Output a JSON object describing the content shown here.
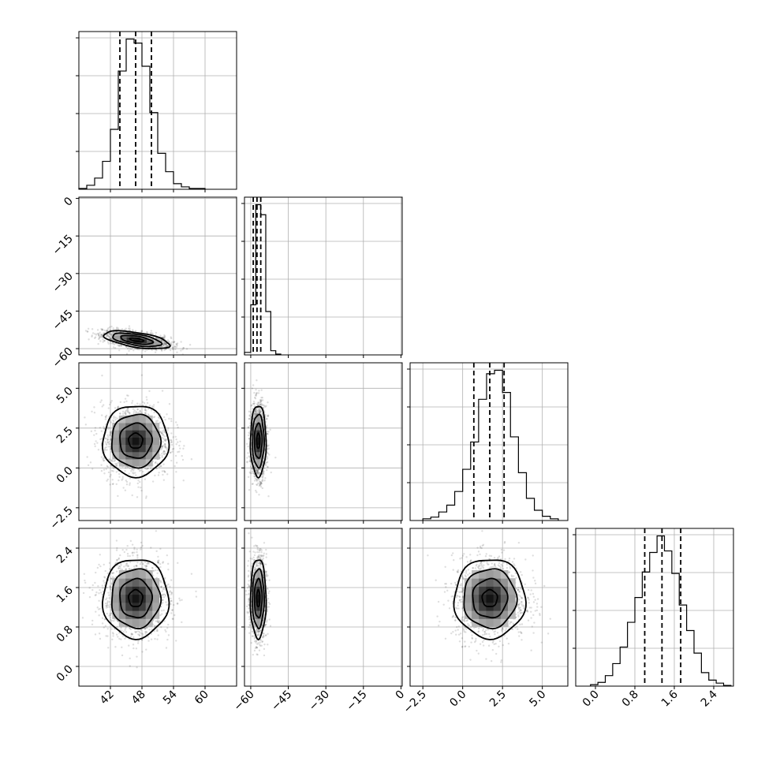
{
  "chart_data": {
    "type": "corner",
    "parameters": [
      {
        "range": [
          36,
          66
        ],
        "ticks": [
          42,
          48,
          54,
          60
        ],
        "tick_labels": [
          "42",
          "48",
          "54",
          "60"
        ]
      },
      {
        "range": [
          -62.5,
          0.5
        ],
        "ticks": [
          -60,
          -45,
          -30,
          -15,
          0
        ],
        "tick_labels": [
          "−60",
          "−45",
          "−30",
          "−15",
          "0"
        ]
      },
      {
        "range": [
          -3.3,
          6.6
        ],
        "ticks": [
          -2.5,
          0.0,
          2.5,
          5.0
        ],
        "tick_labels": [
          "−2.5",
          "0.0",
          "2.5",
          "5.0"
        ]
      },
      {
        "range": [
          -0.4,
          2.8
        ],
        "ticks": [
          0.0,
          0.8,
          1.6,
          2.4
        ],
        "tick_labels": [
          "0.0",
          "0.8",
          "1.6",
          "2.4"
        ]
      }
    ],
    "histograms": [
      {
        "quantiles": [
          43.8,
          46.8,
          49.8
        ],
        "bins": [
          36.0,
          37.5,
          39.0,
          40.5,
          42.0,
          43.5,
          45.0,
          46.5,
          48.0,
          49.5,
          51.0,
          52.5,
          54.0,
          55.5,
          57.0,
          58.5,
          60.0
        ],
        "counts": [
          1,
          5,
          14,
          35,
          75,
          148,
          188,
          183,
          154,
          96,
          45,
          22,
          7,
          3,
          1,
          1
        ]
      },
      {
        "quantiles": [
          -59.0,
          -57.5,
          -56.0
        ],
        "bins": [
          -62.5,
          -60.0,
          -58.0,
          -56.0,
          -54.0,
          -52.0,
          -50.0,
          -48.0
        ],
        "counts": [
          3,
          60,
          180,
          168,
          52,
          5,
          1
        ]
      },
      {
        "quantiles": [
          0.7,
          1.7,
          2.6
        ],
        "bins": [
          -2.5,
          -2.0,
          -1.5,
          -1.0,
          -0.5,
          0.0,
          0.5,
          1.0,
          1.5,
          2.0,
          2.5,
          3.0,
          3.5,
          4.0,
          4.5,
          5.0,
          5.5,
          6.0
        ],
        "counts": [
          2,
          4,
          10,
          18,
          34,
          60,
          92,
          142,
          172,
          176,
          150,
          98,
          56,
          26,
          12,
          5,
          2
        ]
      },
      {
        "quantiles": [
          1.0,
          1.35,
          1.73
        ],
        "bins": [
          -0.1,
          0.05,
          0.2,
          0.35,
          0.5,
          0.65,
          0.8,
          0.95,
          1.1,
          1.25,
          1.4,
          1.55,
          1.7,
          1.85,
          2.0,
          2.15,
          2.3,
          2.45,
          2.6,
          2.75
        ],
        "counts": [
          2,
          5,
          14,
          30,
          52,
          85,
          118,
          152,
          178,
          200,
          180,
          150,
          108,
          74,
          44,
          18,
          8,
          4,
          1
        ]
      }
    ],
    "scatter_panels": [
      {
        "row": 1,
        "col": 0,
        "cx": 47.0,
        "cy": -56.5,
        "sx": 2.8,
        "sy": 1.6,
        "rho": -0.55
      },
      {
        "row": 2,
        "col": 0,
        "cx": 46.8,
        "cy": 1.7,
        "sx": 2.8,
        "sy": 1.0,
        "rho": 0.0
      },
      {
        "row": 2,
        "col": 1,
        "cx": -57.0,
        "cy": 1.7,
        "sx": 1.4,
        "sy": 1.0,
        "rho": 0.0
      },
      {
        "row": 3,
        "col": 0,
        "cx": 46.8,
        "cy": 1.38,
        "sx": 2.8,
        "sy": 0.36,
        "rho": 0.0
      },
      {
        "row": 3,
        "col": 1,
        "cx": -57.0,
        "cy": 1.38,
        "sx": 1.4,
        "sy": 0.36,
        "rho": 0.0
      },
      {
        "row": 3,
        "col": 2,
        "cx": 1.7,
        "cy": 1.38,
        "sx": 1.0,
        "sy": 0.36,
        "rho": 0.0
      }
    ],
    "grid": true,
    "quantile_lines": "dashed"
  }
}
